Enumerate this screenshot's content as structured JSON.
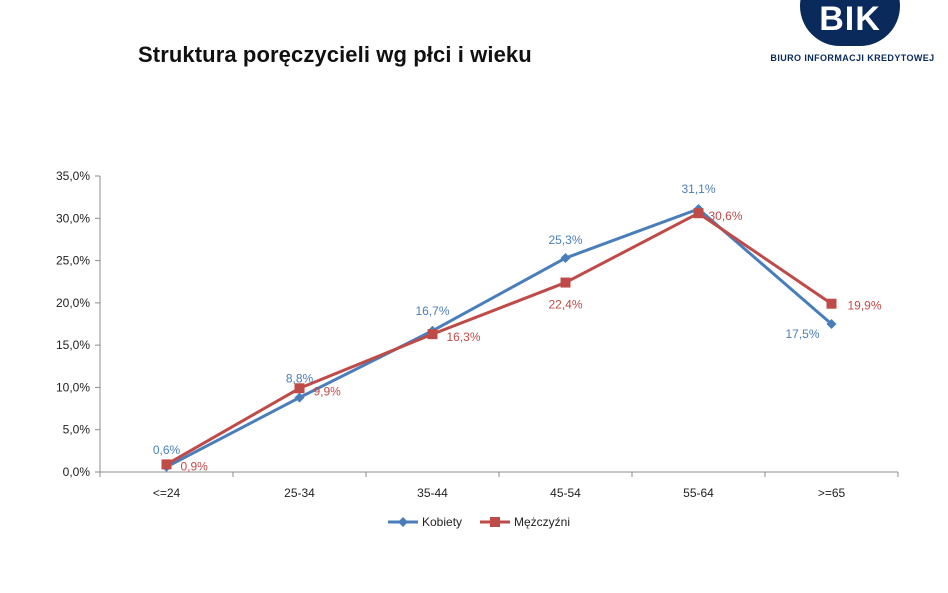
{
  "page": {
    "title": "Struktura poręczycieli wg płci i wieku"
  },
  "logo": {
    "text": "BIK",
    "subtitle": "BIURO INFORMACJI KREDYTOWEJ",
    "color": "#0b2a5c"
  },
  "chart_data": {
    "type": "line",
    "categories": [
      "<=24",
      "25-34",
      "35-44",
      "45-54",
      "55-64",
      ">=65"
    ],
    "y_ticks": [
      "0,0%",
      "5,0%",
      "10,0%",
      "15,0%",
      "20,0%",
      "25,0%",
      "30,0%",
      "35,0%"
    ],
    "ylim": [
      0,
      35
    ],
    "y_unit": "%",
    "grid": false,
    "legend_position": "bottom",
    "series": [
      {
        "name": "Kobiety",
        "color": "#4a7ebb",
        "marker": "diamond",
        "values": [
          0.6,
          8.8,
          16.7,
          25.3,
          31.1,
          17.5
        ],
        "labels": [
          "0,6%",
          "8,8%",
          "16,7%",
          "25,3%",
          "31,1%",
          "17,5%"
        ]
      },
      {
        "name": "Mężczyźni",
        "color": "#be4b48",
        "marker": "square",
        "values": [
          0.9,
          9.9,
          16.3,
          22.4,
          30.6,
          19.9
        ],
        "labels": [
          "0,9%",
          "9,9%",
          "16,3%",
          "22,4%",
          "30,6%",
          "19,9%"
        ]
      }
    ]
  }
}
